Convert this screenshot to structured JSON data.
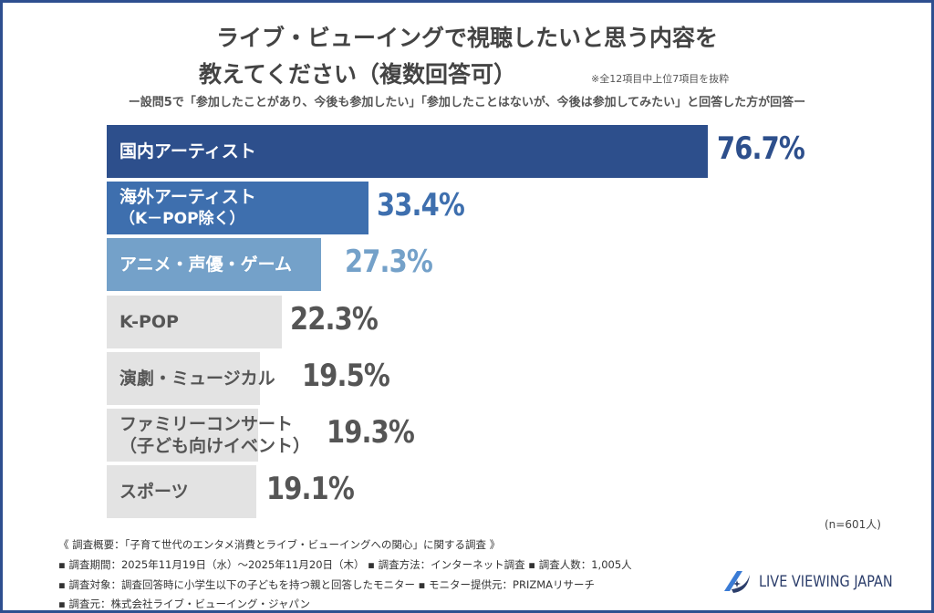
{
  "title_line1": "ライブ・ビューイングで視聴したいと思う内容を",
  "title_line2": "教えてください（複数回答可）",
  "note": "※全12項目中上位7項目を抜粋",
  "subtitle": "ー設問5で「参加したことがあり、今後も参加したい」「参加したことはないが、今後は参加してみたい」と回答した方が回答ー",
  "sample_size": "(n=601人)",
  "chart_data": {
    "type": "bar",
    "orientation": "horizontal",
    "categories": [
      "国内アーティスト",
      "海外アーティスト\n（K−POP除く）",
      "アニメ・声優・ゲーム",
      "K-POP",
      "演劇・ミュージカル",
      "ファミリーコンサート\n（子ども向けイベント）",
      "スポーツ"
    ],
    "category_lines": [
      [
        "国内アーティスト"
      ],
      [
        "海外アーティスト",
        "（K－POP除く）"
      ],
      [
        "アニメ・声優・ゲーム"
      ],
      [
        "K-POP"
      ],
      [
        "演劇・ミュージカル"
      ],
      [
        "ファミリーコンサート",
        "（子ども向けイベント）"
      ],
      [
        "スポーツ"
      ]
    ],
    "values": [
      76.7,
      33.4,
      27.3,
      22.3,
      19.5,
      19.3,
      19.1
    ],
    "value_labels": [
      "76.7%",
      "33.4%",
      "27.3%",
      "22.3%",
      "19.5%",
      "19.3%",
      "19.1%"
    ],
    "unit": "%",
    "bar_colors": [
      "#2d4f8c",
      "#3e6fae",
      "#74a1c9",
      "#e3e3e3",
      "#e3e3e3",
      "#e3e3e3",
      "#e3e3e3"
    ],
    "value_colors": [
      "#2d4f8c",
      "#3e6fae",
      "#74a1c9",
      "#555555",
      "#555555",
      "#555555",
      "#555555"
    ],
    "label_colors": [
      "#ffffff",
      "#ffffff",
      "#ffffff",
      "#555555",
      "#555555",
      "#555555",
      "#555555"
    ],
    "grid": false
  },
  "footer": {
    "overview": "《 調査概要：「子育て世代のエンタメ消費とライブ・ビューイングへの関心」に関する調査 》",
    "line1": "▪ 調査期間：2025年11月19日（水）〜2025年11月20日（木）  ▪ 調査方法：インターネット調査    ▪ 調査人数：1,005人",
    "line2": "▪ 調査対象：調査回答時に小学生以下の子どもを持つ親と回答したモニター       ▪ モニター提供元：PRIZMAリサーチ",
    "line3": "▪ 調査元：株式会社ライブ・ビューイング・ジャパン"
  },
  "logo_text": "LIVE VIEWING JAPAN",
  "frame_color": "#2e4f8f"
}
